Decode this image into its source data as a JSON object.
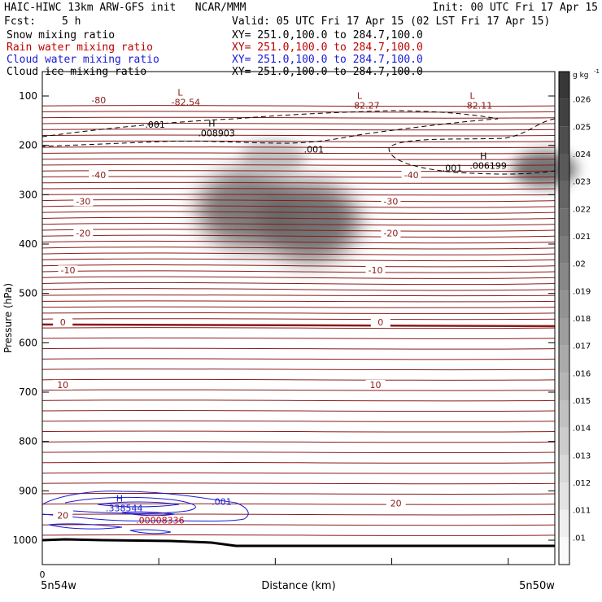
{
  "header": {
    "title_left": "HAIC-HIWC 13km ARW-GFS init   NCAR/MMM",
    "init": "Init: 00 UTC Fri 17 Apr 15",
    "fcst_label": "Fcst:",
    "fcst_value": "5 h",
    "valid": "Valid: 05 UTC Fri 17 Apr 15 (02 LST Fri 17 Apr 15)",
    "fields": [
      {
        "name": "Snow mixing ratio",
        "xy": "XY= 251.0,100.0 to 284.7,100.0",
        "color": "#000000"
      },
      {
        "name": "Rain water mixing ratio",
        "xy": "XY= 251.0,100.0 to 284.7,100.0",
        "color": "#c00000"
      },
      {
        "name": "Cloud water mixing ratio",
        "xy": "XY= 251.0,100.0 to 284.7,100.0",
        "color": "#1a1ad6"
      },
      {
        "name": "Cloud ice mixing ratio",
        "xy": "XY= 251.0,100.0 to 284.7,100.0",
        "color": "#000000"
      }
    ]
  },
  "chart_data": {
    "type": "heatmap",
    "xlabel": "Distance (km)",
    "ylabel": "Pressure (hPa)",
    "x_start_label": "5n54w",
    "x_end_label": "5n50w",
    "x_zero_label": "0",
    "y_ticks": [
      100,
      200,
      300,
      400,
      500,
      600,
      700,
      800,
      900,
      1000
    ],
    "ylim": [
      1040,
      50
    ],
    "colorbar": {
      "unit": "g kg",
      "unit_exp": "-1",
      "levels": [
        ".01",
        ".011",
        ".012",
        ".013",
        ".014",
        ".015",
        ".016",
        ".017",
        ".018",
        ".019",
        ".02",
        ".021",
        ".022",
        ".023",
        ".024",
        ".025",
        ".026"
      ]
    },
    "temperature_contours": {
      "color": "#8b1a1a",
      "levels": [
        -80,
        -40,
        -30,
        -20,
        -10,
        0,
        10,
        20
      ],
      "labels": [
        {
          "text": "-80",
          "x": 0.11,
          "p": 113
        },
        {
          "text": "-40",
          "x": 0.11,
          "p": 265
        },
        {
          "text": "-40",
          "x": 0.72,
          "p": 265
        },
        {
          "text": "-30",
          "x": 0.08,
          "p": 318
        },
        {
          "text": "-30",
          "x": 0.68,
          "p": 318
        },
        {
          "text": "-20",
          "x": 0.08,
          "p": 383
        },
        {
          "text": "-20",
          "x": 0.68,
          "p": 383
        },
        {
          "text": "-10",
          "x": 0.05,
          "p": 458
        },
        {
          "text": "-10",
          "x": 0.65,
          "p": 458
        },
        {
          "text": "0",
          "x": 0.04,
          "p": 563
        },
        {
          "text": "0",
          "x": 0.66,
          "p": 563
        },
        {
          "text": "10",
          "x": 0.04,
          "p": 690
        },
        {
          "text": "10",
          "x": 0.65,
          "p": 690
        },
        {
          "text": "20",
          "x": 0.04,
          "p": 955
        },
        {
          "text": "20",
          "x": 0.69,
          "p": 930
        }
      ]
    },
    "extrema_labels": [
      {
        "type": "L",
        "value": "-82.54",
        "x": 0.28,
        "p": 112,
        "color": "#8b1a1a"
      },
      {
        "type": "L",
        "value": "-82.27",
        "x": 0.63,
        "p": 119,
        "color": "#8b1a1a"
      },
      {
        "type": "L",
        "value": "-82.11",
        "x": 0.85,
        "p": 119,
        "color": "#8b1a1a"
      },
      {
        "type": "H",
        "value": ".008903",
        "x": 0.34,
        "p": 175,
        "color": "#000000"
      },
      {
        "type": "H",
        "value": ".006199",
        "x": 0.87,
        "p": 241,
        "color": "#000000"
      },
      {
        "type": "H",
        "value": ".338544",
        "x": 0.16,
        "p": 935,
        "color": "#1a1ad6"
      },
      {
        "type": "",
        "value": ".00008336",
        "x": 0.23,
        "p": 960,
        "color": "#c00000"
      }
    ],
    "contour_value_labels": [
      {
        "text": ".001",
        "x": 0.22,
        "p": 158,
        "color": "#000000"
      },
      {
        "text": ".001",
        "x": 0.53,
        "p": 208,
        "color": "#000000"
      },
      {
        "text": ".001",
        "x": 0.8,
        "p": 246,
        "color": "#000000"
      },
      {
        "text": ".001",
        "x": 0.35,
        "p": 922,
        "color": "#1a1ad6"
      }
    ],
    "shaded_regions": [
      {
        "x": 0.4,
        "p": 330,
        "value": 0.022
      },
      {
        "x": 0.52,
        "p": 355,
        "value": 0.023
      },
      {
        "x": 0.45,
        "p": 225,
        "value": 0.015
      },
      {
        "x": 0.98,
        "p": 248,
        "value": 0.023
      }
    ]
  }
}
